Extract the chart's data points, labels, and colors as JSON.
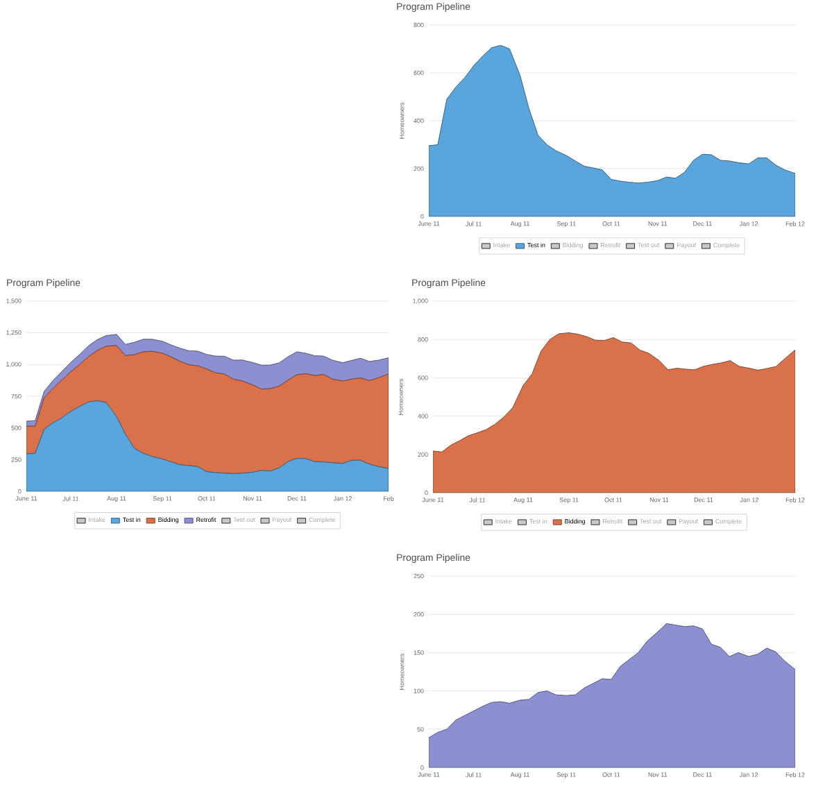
{
  "chart_data": [
    {
      "type": "area",
      "title": "Program Pipeline",
      "ylabel": "Homeowners",
      "grid": "y",
      "legend": "bottom",
      "x": [
        "2011-06-01",
        "2011-06-07",
        "2011-06-13",
        "2011-06-19",
        "2011-06-25",
        "2011-07-01",
        "2011-07-07",
        "2011-07-13",
        "2011-07-19",
        "2011-07-25",
        "2011-08-01",
        "2011-08-07",
        "2011-08-13",
        "2011-08-19",
        "2011-08-25",
        "2011-09-01",
        "2011-09-07",
        "2011-09-13",
        "2011-09-19",
        "2011-09-25",
        "2011-10-01",
        "2011-10-07",
        "2011-10-13",
        "2011-10-19",
        "2011-10-25",
        "2011-11-01",
        "2011-11-07",
        "2011-11-13",
        "2011-11-19",
        "2011-11-25",
        "2011-12-01",
        "2011-12-07",
        "2011-12-13",
        "2011-12-19",
        "2011-12-25",
        "2012-01-01",
        "2012-01-07",
        "2012-01-13",
        "2012-01-19",
        "2012-01-25",
        "2012-02-01"
      ],
      "xlim": [
        "2011-06-01",
        "2012-02-01"
      ],
      "xticks": [
        {
          "value": "2011-06-01",
          "label": "June 11"
        },
        {
          "value": "2011-07-01",
          "label": "Jul 11"
        },
        {
          "value": "2011-08-01",
          "label": "Aug 11"
        },
        {
          "value": "2011-09-01",
          "label": "Sep 11"
        },
        {
          "value": "2011-10-01",
          "label": "Oct 11"
        },
        {
          "value": "2011-11-01",
          "label": "Nov 11"
        },
        {
          "value": "2011-12-01",
          "label": "Dec 11"
        },
        {
          "value": "2012-01-01",
          "label": "Jan 12"
        },
        {
          "value": "2012-02-01",
          "label": "Feb 12"
        }
      ],
      "ylim": [
        0,
        800
      ],
      "yticks": [
        0,
        200,
        400,
        600,
        800
      ],
      "series": [
        {
          "name": "Intake",
          "color": "#c8c8c8",
          "values": [
            null,
            null,
            null,
            null,
            null,
            null,
            null,
            null,
            null,
            null,
            null,
            null,
            null,
            null,
            null,
            null,
            null,
            null,
            null,
            null,
            null,
            null,
            null,
            null,
            null,
            null,
            null,
            null,
            null,
            null,
            null,
            null,
            null,
            null,
            null,
            null,
            null,
            null,
            null,
            null,
            null
          ]
        },
        {
          "name": "Test in",
          "color": "#5aa5dc",
          "values": [
            296,
            300,
            490,
            540,
            580,
            630,
            670,
            705,
            715,
            700,
            590,
            450,
            340,
            300,
            275,
            255,
            232,
            210,
            203,
            195,
            155,
            148,
            143,
            140,
            143,
            150,
            165,
            160,
            185,
            235,
            260,
            258,
            235,
            232,
            225,
            220,
            245,
            245,
            215,
            195,
            180
          ]
        },
        {
          "name": "Bidding",
          "color": "#c8c8c8",
          "values": [
            null,
            null,
            null,
            null,
            null,
            null,
            null,
            null,
            null,
            null,
            null,
            null,
            null,
            null,
            null,
            null,
            null,
            null,
            null,
            null,
            null,
            null,
            null,
            null,
            null,
            null,
            null,
            null,
            null,
            null,
            null,
            null,
            null,
            null,
            null,
            null,
            null,
            null,
            null,
            null,
            null
          ]
        },
        {
          "name": "Retrofit",
          "color": "#c8c8c8",
          "values": [
            null,
            null,
            null,
            null,
            null,
            null,
            null,
            null,
            null,
            null,
            null,
            null,
            null,
            null,
            null,
            null,
            null,
            null,
            null,
            null,
            null,
            null,
            null,
            null,
            null,
            null,
            null,
            null,
            null,
            null,
            null,
            null,
            null,
            null,
            null,
            null,
            null,
            null,
            null,
            null,
            null
          ]
        },
        {
          "name": "Test out",
          "color": "#c8c8c8",
          "values": [
            null,
            null,
            null,
            null,
            null,
            null,
            null,
            null,
            null,
            null,
            null,
            null,
            null,
            null,
            null,
            null,
            null,
            null,
            null,
            null,
            null,
            null,
            null,
            null,
            null,
            null,
            null,
            null,
            null,
            null,
            null,
            null,
            null,
            null,
            null,
            null,
            null,
            null,
            null,
            null,
            null
          ]
        },
        {
          "name": "Payout",
          "color": "#c8c8c8",
          "values": [
            null,
            null,
            null,
            null,
            null,
            null,
            null,
            null,
            null,
            null,
            null,
            null,
            null,
            null,
            null,
            null,
            null,
            null,
            null,
            null,
            null,
            null,
            null,
            null,
            null,
            null,
            null,
            null,
            null,
            null,
            null,
            null,
            null,
            null,
            null,
            null,
            null,
            null,
            null,
            null,
            null
          ]
        },
        {
          "name": "Complete",
          "color": "#c8c8c8",
          "values": [
            null,
            null,
            null,
            null,
            null,
            null,
            null,
            null,
            null,
            null,
            null,
            null,
            null,
            null,
            null,
            null,
            null,
            null,
            null,
            null,
            null,
            null,
            null,
            null,
            null,
            null,
            null,
            null,
            null,
            null,
            null,
            null,
            null,
            null,
            null,
            null,
            null,
            null,
            null,
            null,
            null
          ]
        }
      ]
    },
    {
      "type": "area",
      "title": "Program Pipeline",
      "grid": "y",
      "legend": "bottom",
      "stacked": true,
      "x": [
        "2011-06-01",
        "2011-06-07",
        "2011-06-13",
        "2011-06-19",
        "2011-06-25",
        "2011-07-01",
        "2011-07-07",
        "2011-07-13",
        "2011-07-19",
        "2011-07-25",
        "2011-08-01",
        "2011-08-07",
        "2011-08-13",
        "2011-08-19",
        "2011-08-25",
        "2011-09-01",
        "2011-09-07",
        "2011-09-13",
        "2011-09-19",
        "2011-09-25",
        "2011-10-01",
        "2011-10-07",
        "2011-10-13",
        "2011-10-19",
        "2011-10-25",
        "2011-11-01",
        "2011-11-07",
        "2011-11-13",
        "2011-11-19",
        "2011-11-25",
        "2011-12-01",
        "2011-12-07",
        "2011-12-13",
        "2011-12-19",
        "2011-12-25",
        "2012-01-01",
        "2012-01-07",
        "2012-01-13",
        "2012-01-19",
        "2012-01-25",
        "2012-02-01"
      ],
      "xlim": [
        "2011-06-01",
        "2012-02-01"
      ],
      "xticks": [
        {
          "value": "2011-06-01",
          "label": "June 11"
        },
        {
          "value": "2011-07-01",
          "label": "Jul 11"
        },
        {
          "value": "2011-08-01",
          "label": "Aug 11"
        },
        {
          "value": "2011-09-01",
          "label": "Sep 11"
        },
        {
          "value": "2011-10-01",
          "label": "Oct 11"
        },
        {
          "value": "2011-11-01",
          "label": "Nov 11"
        },
        {
          "value": "2011-12-01",
          "label": "Dec 11"
        },
        {
          "value": "2012-01-01",
          "label": "Jan 12"
        },
        {
          "value": "2012-02-01",
          "label": "Feb"
        }
      ],
      "ylim": [
        0,
        1500
      ],
      "yticks": [
        0,
        250,
        500,
        750,
        {
          "value": 1000,
          "label": "1,000"
        },
        {
          "value": 1250,
          "label": "1,250"
        },
        {
          "value": 1500,
          "label": "1,500"
        }
      ],
      "series": [
        {
          "name": "Intake",
          "color": "#c8c8c8",
          "values": [
            null,
            null,
            null,
            null,
            null,
            null,
            null,
            null,
            null,
            null,
            null,
            null,
            null,
            null,
            null,
            null,
            null,
            null,
            null,
            null,
            null,
            null,
            null,
            null,
            null,
            null,
            null,
            null,
            null,
            null,
            null,
            null,
            null,
            null,
            null,
            null,
            null,
            null,
            null,
            null,
            null
          ]
        },
        {
          "name": "Test in",
          "color": "#5aa5dc",
          "values": [
            296,
            300,
            490,
            540,
            580,
            630,
            670,
            705,
            715,
            700,
            590,
            450,
            340,
            300,
            275,
            255,
            232,
            210,
            203,
            195,
            155,
            148,
            143,
            140,
            143,
            150,
            165,
            160,
            185,
            235,
            260,
            258,
            235,
            232,
            225,
            220,
            245,
            245,
            215,
            195,
            180
          ]
        },
        {
          "name": "Bidding",
          "color": "#d9714a",
          "values": [
            218,
            213,
            248,
            272,
            298,
            313,
            330,
            358,
            396,
            445,
            560,
            620,
            738,
            800,
            830,
            835,
            828,
            815,
            796,
            795,
            810,
            787,
            782,
            745,
            728,
            690,
            642,
            650,
            645,
            642,
            660,
            670,
            678,
            690,
            660,
            650,
            640,
            649,
            659,
            700,
            746
          ]
        },
        {
          "name": "Retrofit",
          "color": "#8c8fd0",
          "values": [
            39,
            46,
            50,
            62,
            68,
            74,
            80,
            85,
            86,
            84,
            88,
            89,
            98,
            100,
            95,
            94,
            95,
            104,
            110,
            116,
            115,
            132,
            141,
            150,
            165,
            177,
            188,
            186,
            184,
            185,
            181,
            161,
            157,
            145,
            150,
            145,
            148,
            156,
            151,
            139,
            128
          ]
        },
        {
          "name": "Test out",
          "color": "#c8c8c8",
          "values": [
            null,
            null,
            null,
            null,
            null,
            null,
            null,
            null,
            null,
            null,
            null,
            null,
            null,
            null,
            null,
            null,
            null,
            null,
            null,
            null,
            null,
            null,
            null,
            null,
            null,
            null,
            null,
            null,
            null,
            null,
            null,
            null,
            null,
            null,
            null,
            null,
            null,
            null,
            null,
            null,
            null
          ]
        },
        {
          "name": "Payout",
          "color": "#c8c8c8",
          "values": [
            null,
            null,
            null,
            null,
            null,
            null,
            null,
            null,
            null,
            null,
            null,
            null,
            null,
            null,
            null,
            null,
            null,
            null,
            null,
            null,
            null,
            null,
            null,
            null,
            null,
            null,
            null,
            null,
            null,
            null,
            null,
            null,
            null,
            null,
            null,
            null,
            null,
            null,
            null,
            null,
            null
          ]
        },
        {
          "name": "Complete",
          "color": "#c8c8c8",
          "values": [
            null,
            null,
            null,
            null,
            null,
            null,
            null,
            null,
            null,
            null,
            null,
            null,
            null,
            null,
            null,
            null,
            null,
            null,
            null,
            null,
            null,
            null,
            null,
            null,
            null,
            null,
            null,
            null,
            null,
            null,
            null,
            null,
            null,
            null,
            null,
            null,
            null,
            null,
            null,
            null,
            null
          ]
        }
      ]
    },
    {
      "type": "area",
      "title": "Program Pipeline",
      "ylabel": "Homeowners",
      "grid": "y",
      "legend": "bottom",
      "x": [
        "2011-06-01",
        "2011-06-07",
        "2011-06-13",
        "2011-06-19",
        "2011-06-25",
        "2011-07-01",
        "2011-07-07",
        "2011-07-13",
        "2011-07-19",
        "2011-07-25",
        "2011-08-01",
        "2011-08-07",
        "2011-08-13",
        "2011-08-19",
        "2011-08-25",
        "2011-09-01",
        "2011-09-07",
        "2011-09-13",
        "2011-09-19",
        "2011-09-25",
        "2011-10-01",
        "2011-10-07",
        "2011-10-13",
        "2011-10-19",
        "2011-10-25",
        "2011-11-01",
        "2011-11-07",
        "2011-11-13",
        "2011-11-19",
        "2011-11-25",
        "2011-12-01",
        "2011-12-07",
        "2011-12-13",
        "2011-12-19",
        "2011-12-25",
        "2012-01-01",
        "2012-01-07",
        "2012-01-13",
        "2012-01-19",
        "2012-01-25",
        "2012-02-01"
      ],
      "xlim": [
        "2011-06-01",
        "2012-02-01"
      ],
      "xticks": [
        {
          "value": "2011-06-01",
          "label": "June 11"
        },
        {
          "value": "2011-07-01",
          "label": "Jul 11"
        },
        {
          "value": "2011-08-01",
          "label": "Aug 11"
        },
        {
          "value": "2011-09-01",
          "label": "Sep 11"
        },
        {
          "value": "2011-10-01",
          "label": "Oct 11"
        },
        {
          "value": "2011-11-01",
          "label": "Nov 11"
        },
        {
          "value": "2011-12-01",
          "label": "Dec 11"
        },
        {
          "value": "2012-01-01",
          "label": "Jan 12"
        },
        {
          "value": "2012-02-01",
          "label": "Feb 12"
        }
      ],
      "ylim": [
        0,
        1000
      ],
      "yticks": [
        0,
        200,
        400,
        600,
        800,
        {
          "value": 1000,
          "label": "1,000"
        }
      ],
      "series": [
        {
          "name": "Intake",
          "color": "#c8c8c8",
          "values": [
            null,
            null,
            null,
            null,
            null,
            null,
            null,
            null,
            null,
            null,
            null,
            null,
            null,
            null,
            null,
            null,
            null,
            null,
            null,
            null,
            null,
            null,
            null,
            null,
            null,
            null,
            null,
            null,
            null,
            null,
            null,
            null,
            null,
            null,
            null,
            null,
            null,
            null,
            null,
            null,
            null
          ]
        },
        {
          "name": "Test in",
          "color": "#c8c8c8",
          "values": [
            null,
            null,
            null,
            null,
            null,
            null,
            null,
            null,
            null,
            null,
            null,
            null,
            null,
            null,
            null,
            null,
            null,
            null,
            null,
            null,
            null,
            null,
            null,
            null,
            null,
            null,
            null,
            null,
            null,
            null,
            null,
            null,
            null,
            null,
            null,
            null,
            null,
            null,
            null,
            null,
            null
          ]
        },
        {
          "name": "Bidding",
          "color": "#d9714a",
          "values": [
            218,
            213,
            248,
            272,
            298,
            313,
            330,
            358,
            396,
            445,
            560,
            620,
            738,
            800,
            830,
            835,
            828,
            815,
            796,
            795,
            810,
            787,
            782,
            745,
            728,
            690,
            642,
            650,
            645,
            642,
            660,
            670,
            678,
            690,
            660,
            650,
            640,
            649,
            659,
            700,
            746
          ]
        },
        {
          "name": "Retrofit",
          "color": "#c8c8c8",
          "values": [
            null,
            null,
            null,
            null,
            null,
            null,
            null,
            null,
            null,
            null,
            null,
            null,
            null,
            null,
            null,
            null,
            null,
            null,
            null,
            null,
            null,
            null,
            null,
            null,
            null,
            null,
            null,
            null,
            null,
            null,
            null,
            null,
            null,
            null,
            null,
            null,
            null,
            null,
            null,
            null,
            null
          ]
        },
        {
          "name": "Test out",
          "color": "#c8c8c8",
          "values": [
            null,
            null,
            null,
            null,
            null,
            null,
            null,
            null,
            null,
            null,
            null,
            null,
            null,
            null,
            null,
            null,
            null,
            null,
            null,
            null,
            null,
            null,
            null,
            null,
            null,
            null,
            null,
            null,
            null,
            null,
            null,
            null,
            null,
            null,
            null,
            null,
            null,
            null,
            null,
            null,
            null
          ]
        },
        {
          "name": "Payout",
          "color": "#c8c8c8",
          "values": [
            null,
            null,
            null,
            null,
            null,
            null,
            null,
            null,
            null,
            null,
            null,
            null,
            null,
            null,
            null,
            null,
            null,
            null,
            null,
            null,
            null,
            null,
            null,
            null,
            null,
            null,
            null,
            null,
            null,
            null,
            null,
            null,
            null,
            null,
            null,
            null,
            null,
            null,
            null,
            null,
            null
          ]
        },
        {
          "name": "Complete",
          "color": "#c8c8c8",
          "values": [
            null,
            null,
            null,
            null,
            null,
            null,
            null,
            null,
            null,
            null,
            null,
            null,
            null,
            null,
            null,
            null,
            null,
            null,
            null,
            null,
            null,
            null,
            null,
            null,
            null,
            null,
            null,
            null,
            null,
            null,
            null,
            null,
            null,
            null,
            null,
            null,
            null,
            null,
            null,
            null,
            null
          ]
        }
      ]
    },
    {
      "type": "area",
      "title": "Program Pipeline",
      "ylabel": "Homeowners",
      "grid": "y",
      "x": [
        "2011-06-01",
        "2011-06-07",
        "2011-06-13",
        "2011-06-19",
        "2011-06-25",
        "2011-07-01",
        "2011-07-07",
        "2011-07-13",
        "2011-07-19",
        "2011-07-25",
        "2011-08-01",
        "2011-08-07",
        "2011-08-13",
        "2011-08-19",
        "2011-08-25",
        "2011-09-01",
        "2011-09-07",
        "2011-09-13",
        "2011-09-19",
        "2011-09-25",
        "2011-10-01",
        "2011-10-07",
        "2011-10-13",
        "2011-10-19",
        "2011-10-25",
        "2011-11-01",
        "2011-11-07",
        "2011-11-13",
        "2011-11-19",
        "2011-11-25",
        "2011-12-01",
        "2011-12-07",
        "2011-12-13",
        "2011-12-19",
        "2011-12-25",
        "2012-01-01",
        "2012-01-07",
        "2012-01-13",
        "2012-01-19",
        "2012-01-25",
        "2012-02-01"
      ],
      "xlim": [
        "2011-06-01",
        "2012-02-01"
      ],
      "xticks": [
        {
          "value": "2011-06-01",
          "label": "June 11"
        },
        {
          "value": "2011-07-01",
          "label": "Jul 11"
        },
        {
          "value": "2011-08-01",
          "label": "Aug 11"
        },
        {
          "value": "2011-09-01",
          "label": "Sep 11"
        },
        {
          "value": "2011-10-01",
          "label": "Oct 11"
        },
        {
          "value": "2011-11-01",
          "label": "Nov 11"
        },
        {
          "value": "2011-12-01",
          "label": "Dec 11"
        },
        {
          "value": "2012-01-01",
          "label": "Jan 12"
        },
        {
          "value": "2012-02-01",
          "label": "Feb 12"
        }
      ],
      "ylim": [
        0,
        250
      ],
      "yticks": [
        0,
        50,
        100,
        150,
        200,
        250
      ],
      "series": [
        {
          "color": "#8c8fd0",
          "values": [
            39,
            46,
            50,
            62,
            68,
            74,
            80,
            85,
            86,
            84,
            88,
            89,
            98,
            100,
            95,
            94,
            95,
            104,
            110,
            116,
            115,
            132,
            141,
            150,
            165,
            177,
            188,
            186,
            184,
            185,
            181,
            161,
            157,
            145,
            150,
            145,
            148,
            156,
            151,
            139,
            128
          ]
        }
      ]
    }
  ]
}
